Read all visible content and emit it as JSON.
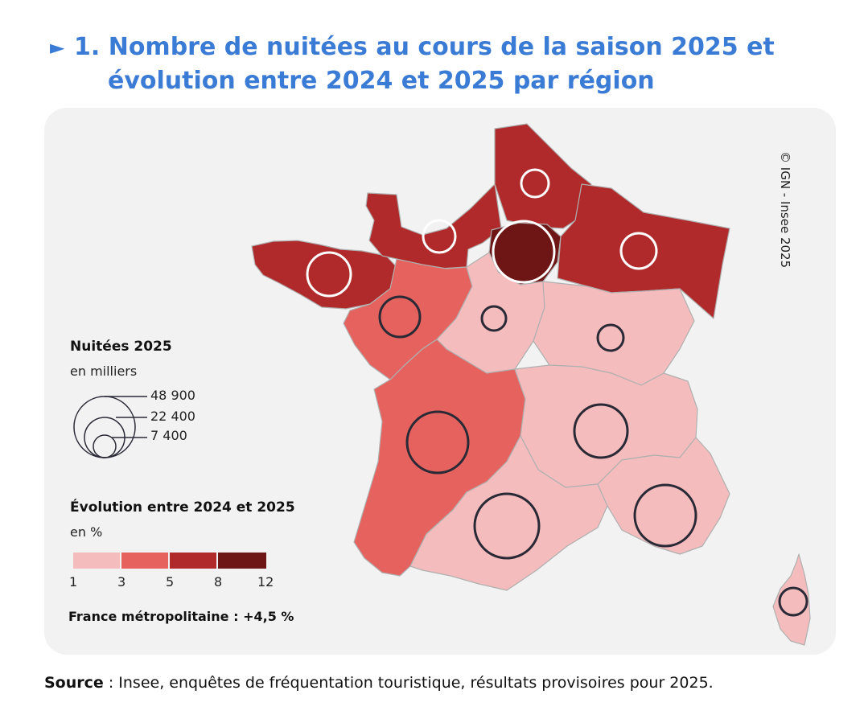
{
  "header": {
    "arrow": "►",
    "title_line1": "1. Nombre de nuitées au cours de la saison 2025 et",
    "title_line2": "évolution entre 2024 et 2025 par région"
  },
  "legend": {
    "size_title": "Nuitées 2025",
    "size_unit": "en milliers",
    "size_values": [
      "48 900",
      "22 400",
      "7 400"
    ],
    "evolution_title": "Évolution entre 2024 et 2025",
    "evolution_unit": "en %",
    "class_breaks": [
      "1",
      "3",
      "5",
      "8",
      "12"
    ],
    "class_colors": [
      "#f5bcbd",
      "#e5625e",
      "#b12a2b",
      "#6e1515"
    ],
    "france_total": "France métropolitaine : +4,5 %"
  },
  "copyright": "© IGN - Insee 2025",
  "source": {
    "label": "Source",
    "text": " : Insee, enquêtes de fréquentation touristique, résultats provisoires pour 2025."
  }
}
